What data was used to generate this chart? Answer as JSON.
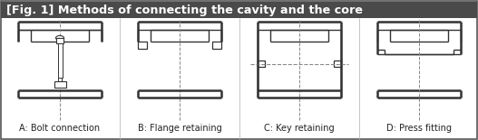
{
  "title": "[Fig. 1] Methods of connecting the cavity and the core",
  "title_bg": "#4a4a4a",
  "title_fg": "#ffffff",
  "line_color": "#333333",
  "dash_color": "#888888",
  "bg_color": "#ffffff",
  "border_color": "#555555",
  "labels": [
    "A: Bolt connection",
    "B: Flange retaining",
    "C: Key retaining",
    "D: Press fitting"
  ],
  "label_fontsize": 7.0,
  "fig_width": 5.27,
  "fig_height": 1.55,
  "dpi": 100
}
